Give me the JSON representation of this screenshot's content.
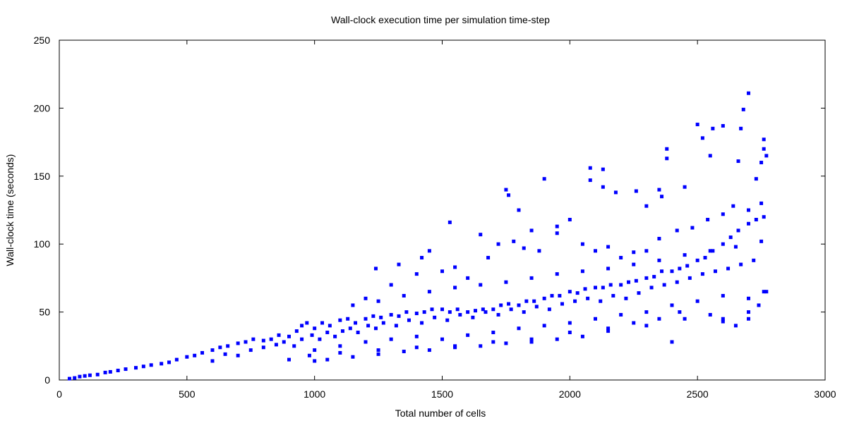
{
  "chart_data": {
    "type": "scatter",
    "title": "Wall-clock execution time per simulation time-step",
    "xlabel": "Total number of cells",
    "ylabel": "Wall-clock time (seconds)",
    "xlim": [
      0,
      3000
    ],
    "ylim": [
      0,
      250
    ],
    "xticks": [
      0,
      500,
      1000,
      1500,
      2000,
      2500,
      3000
    ],
    "yticks": [
      0,
      50,
      100,
      150,
      200,
      250
    ],
    "xtick_labels": [
      "0",
      "500",
      "1000",
      "1500",
      "2000",
      "2500",
      "3000"
    ],
    "ytick_labels": [
      "0",
      "50",
      "100",
      "150",
      "200",
      "250"
    ],
    "grid": false,
    "legend": "none",
    "marker_color": "#0000ff",
    "series": [
      {
        "points": [
          [
            40,
            1
          ],
          [
            60,
            1.5
          ],
          [
            80,
            2.5
          ],
          [
            100,
            3
          ],
          [
            120,
            3.5
          ],
          [
            150,
            4
          ],
          [
            180,
            5.5
          ],
          [
            200,
            6
          ],
          [
            230,
            7
          ],
          [
            260,
            8
          ],
          [
            300,
            9
          ],
          [
            330,
            10
          ],
          [
            360,
            11
          ],
          [
            400,
            12
          ],
          [
            430,
            13
          ],
          [
            460,
            15
          ],
          [
            500,
            17
          ],
          [
            530,
            18
          ],
          [
            560,
            20
          ],
          [
            600,
            22
          ],
          [
            630,
            24
          ],
          [
            660,
            25
          ],
          [
            700,
            27
          ],
          [
            730,
            28
          ],
          [
            760,
            30
          ],
          [
            800,
            29
          ],
          [
            830,
            30
          ],
          [
            860,
            33
          ],
          [
            900,
            32
          ],
          [
            930,
            36
          ],
          [
            950,
            40
          ],
          [
            970,
            42
          ],
          [
            1000,
            38
          ],
          [
            1030,
            42
          ],
          [
            1060,
            40
          ],
          [
            1100,
            44
          ],
          [
            1130,
            45
          ],
          [
            1160,
            42
          ],
          [
            1200,
            45
          ],
          [
            1230,
            47
          ],
          [
            1260,
            46
          ],
          [
            1300,
            48
          ],
          [
            1330,
            47
          ],
          [
            1360,
            50
          ],
          [
            1400,
            49
          ],
          [
            1430,
            50
          ],
          [
            1460,
            52
          ],
          [
            1500,
            52
          ],
          [
            1530,
            50
          ],
          [
            1560,
            52
          ],
          [
            1600,
            50
          ],
          [
            1630,
            51
          ],
          [
            1660,
            52
          ],
          [
            1700,
            52
          ],
          [
            1730,
            55
          ],
          [
            1760,
            56
          ],
          [
            1800,
            55
          ],
          [
            1830,
            58
          ],
          [
            1860,
            58
          ],
          [
            1900,
            60
          ],
          [
            1930,
            62
          ],
          [
            1960,
            62
          ],
          [
            2000,
            65
          ],
          [
            2030,
            64
          ],
          [
            2060,
            67
          ],
          [
            2100,
            68
          ],
          [
            2130,
            68
          ],
          [
            2160,
            70
          ],
          [
            2200,
            70
          ],
          [
            2230,
            72
          ],
          [
            2260,
            73
          ],
          [
            2300,
            75
          ],
          [
            2330,
            76
          ],
          [
            2360,
            80
          ],
          [
            2400,
            80
          ],
          [
            2430,
            82
          ],
          [
            2460,
            84
          ],
          [
            2500,
            88
          ],
          [
            2530,
            90
          ],
          [
            2560,
            95
          ],
          [
            2600,
            100
          ],
          [
            2630,
            105
          ],
          [
            2660,
            110
          ],
          [
            2700,
            115
          ],
          [
            2730,
            118
          ],
          [
            2760,
            120
          ],
          [
            980,
            18
          ],
          [
            1100,
            20
          ],
          [
            1250,
            22
          ],
          [
            1400,
            24
          ],
          [
            1550,
            25
          ],
          [
            1700,
            28
          ],
          [
            1850,
            30
          ],
          [
            2000,
            35
          ],
          [
            2150,
            38
          ],
          [
            2300,
            40
          ],
          [
            2450,
            45
          ],
          [
            2600,
            45
          ],
          [
            2700,
            50
          ],
          [
            1240,
            82
          ],
          [
            1330,
            85
          ],
          [
            1420,
            90
          ],
          [
            1530,
            116
          ],
          [
            1650,
            107
          ],
          [
            1750,
            140
          ],
          [
            1760,
            136
          ],
          [
            1800,
            125
          ],
          [
            1850,
            110
          ],
          [
            1900,
            148
          ],
          [
            1950,
            113
          ],
          [
            2000,
            118
          ],
          [
            2080,
            156
          ],
          [
            2080,
            147
          ],
          [
            2130,
            155
          ],
          [
            2130,
            142
          ],
          [
            2180,
            138
          ],
          [
            2260,
            139
          ],
          [
            2300,
            128
          ],
          [
            2350,
            140
          ],
          [
            2360,
            135
          ],
          [
            2380,
            170
          ],
          [
            2380,
            163
          ],
          [
            2450,
            142
          ],
          [
            2500,
            188
          ],
          [
            2520,
            178
          ],
          [
            2550,
            165
          ],
          [
            2560,
            185
          ],
          [
            2600,
            187
          ],
          [
            2660,
            161
          ],
          [
            2670,
            185
          ],
          [
            2680,
            199
          ],
          [
            2700,
            211
          ],
          [
            2730,
            148
          ],
          [
            2750,
            160
          ],
          [
            2760,
            177
          ],
          [
            2760,
            170
          ],
          [
            2770,
            165
          ],
          [
            1200,
            60
          ],
          [
            1300,
            70
          ],
          [
            1400,
            78
          ],
          [
            1450,
            95
          ],
          [
            1500,
            80
          ],
          [
            1550,
            83
          ],
          [
            1600,
            75
          ],
          [
            1680,
            90
          ],
          [
            1720,
            100
          ],
          [
            1780,
            102
          ],
          [
            1820,
            97
          ],
          [
            1880,
            95
          ],
          [
            1950,
            108
          ],
          [
            2050,
            100
          ],
          [
            2100,
            95
          ],
          [
            2150,
            98
          ],
          [
            2200,
            90
          ],
          [
            2250,
            94
          ],
          [
            2300,
            95
          ],
          [
            2350,
            104
          ],
          [
            2420,
            110
          ],
          [
            2480,
            112
          ],
          [
            2540,
            118
          ],
          [
            2600,
            122
          ],
          [
            2640,
            128
          ],
          [
            2700,
            125
          ],
          [
            2750,
            130
          ],
          [
            900,
            15
          ],
          [
            1000,
            22
          ],
          [
            1100,
            25
          ],
          [
            1200,
            28
          ],
          [
            1300,
            30
          ],
          [
            1400,
            32
          ],
          [
            1500,
            30
          ],
          [
            1600,
            33
          ],
          [
            1700,
            35
          ],
          [
            1800,
            38
          ],
          [
            1900,
            40
          ],
          [
            2000,
            42
          ],
          [
            2100,
            45
          ],
          [
            2200,
            48
          ],
          [
            2300,
            50
          ],
          [
            2400,
            55
          ],
          [
            2500,
            58
          ],
          [
            2600,
            62
          ],
          [
            2700,
            60
          ],
          [
            2760,
            65
          ],
          [
            1150,
            55
          ],
          [
            1250,
            58
          ],
          [
            1350,
            62
          ],
          [
            1450,
            65
          ],
          [
            1550,
            68
          ],
          [
            1650,
            70
          ],
          [
            1750,
            72
          ],
          [
            1850,
            75
          ],
          [
            1950,
            78
          ],
          [
            2050,
            80
          ],
          [
            2150,
            82
          ],
          [
            2250,
            85
          ],
          [
            2350,
            88
          ],
          [
            2450,
            92
          ],
          [
            2550,
            95
          ],
          [
            2650,
            98
          ],
          [
            2750,
            102
          ],
          [
            600,
            14
          ],
          [
            650,
            19
          ],
          [
            700,
            18
          ],
          [
            750,
            22
          ],
          [
            800,
            24
          ],
          [
            850,
            26
          ],
          [
            880,
            28
          ],
          [
            920,
            25
          ],
          [
            950,
            30
          ],
          [
            990,
            33
          ],
          [
            1020,
            30
          ],
          [
            1050,
            35
          ],
          [
            1080,
            32
          ],
          [
            1110,
            36
          ],
          [
            1140,
            38
          ],
          [
            1170,
            35
          ],
          [
            1210,
            40
          ],
          [
            1240,
            38
          ],
          [
            1270,
            42
          ],
          [
            1320,
            40
          ],
          [
            1370,
            44
          ],
          [
            1420,
            42
          ],
          [
            1470,
            46
          ],
          [
            1520,
            44
          ],
          [
            1570,
            48
          ],
          [
            1620,
            46
          ],
          [
            1670,
            50
          ],
          [
            1720,
            48
          ],
          [
            1770,
            52
          ],
          [
            1820,
            50
          ],
          [
            1870,
            54
          ],
          [
            1920,
            52
          ],
          [
            1970,
            56
          ],
          [
            2020,
            58
          ],
          [
            2070,
            60
          ],
          [
            2120,
            58
          ],
          [
            2170,
            62
          ],
          [
            2220,
            60
          ],
          [
            2270,
            64
          ],
          [
            2320,
            68
          ],
          [
            2370,
            70
          ],
          [
            2420,
            72
          ],
          [
            2470,
            75
          ],
          [
            2520,
            78
          ],
          [
            2570,
            80
          ],
          [
            2620,
            82
          ],
          [
            2670,
            85
          ],
          [
            2720,
            88
          ],
          [
            2400,
            28
          ],
          [
            2430,
            50
          ],
          [
            2550,
            48
          ],
          [
            2600,
            43
          ],
          [
            2650,
            40
          ],
          [
            2700,
            45
          ],
          [
            2740,
            55
          ],
          [
            2770,
            65
          ],
          [
            2350,
            45
          ],
          [
            2250,
            42
          ],
          [
            2150,
            36
          ],
          [
            2050,
            32
          ],
          [
            1950,
            30
          ],
          [
            1850,
            28
          ],
          [
            1750,
            27
          ],
          [
            1650,
            25
          ],
          [
            1550,
            24
          ],
          [
            1450,
            22
          ],
          [
            1350,
            21
          ],
          [
            1250,
            19
          ],
          [
            1150,
            17
          ],
          [
            1050,
            15
          ],
          [
            1000,
            14
          ]
        ]
      }
    ]
  }
}
